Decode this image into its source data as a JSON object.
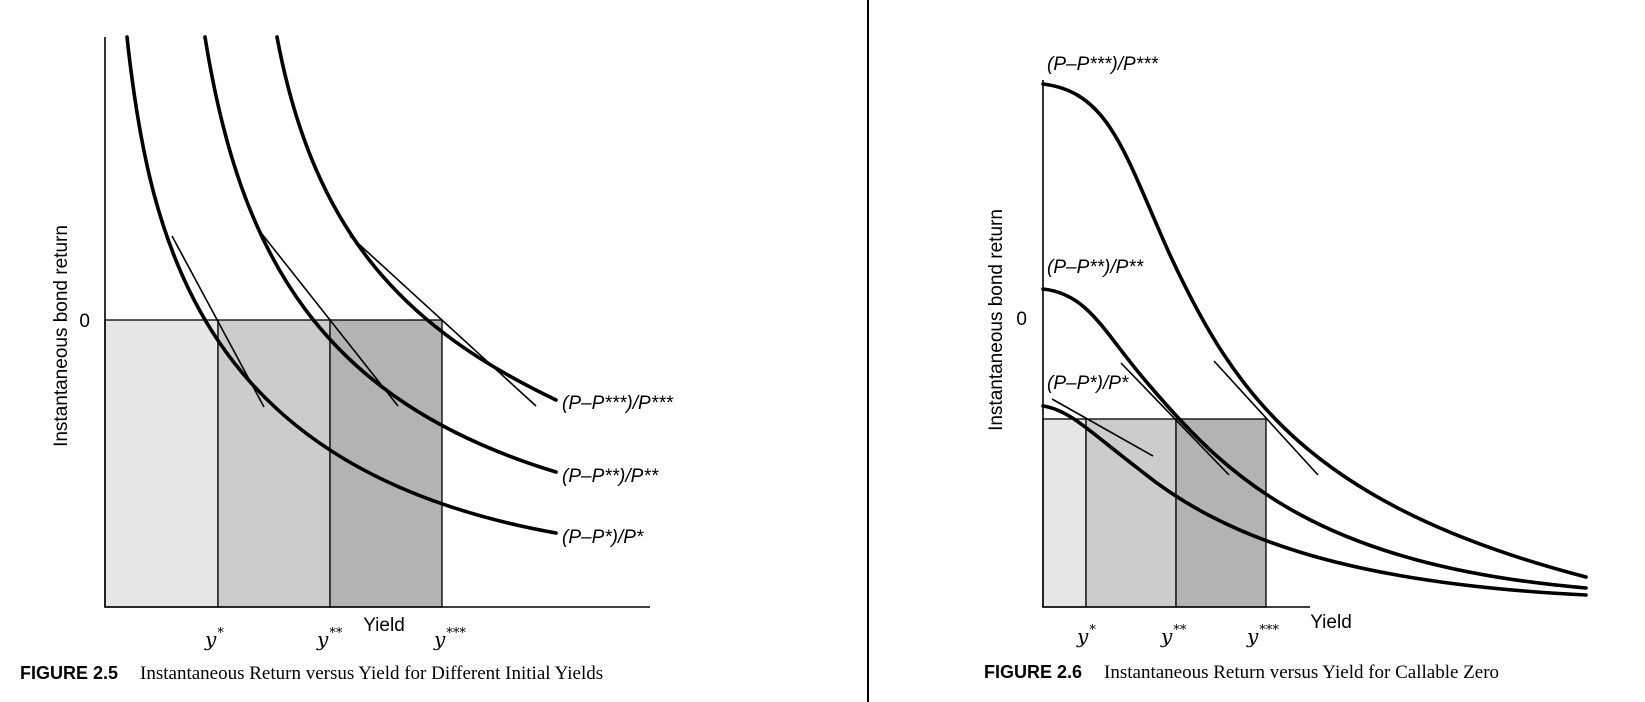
{
  "figures": [
    {
      "number": "FIGURE 2.5",
      "caption": "Instantaneous Return versus Yield for Different Initial Yields",
      "y_axis_label": "Instantaneous bond return",
      "x_axis_label": "Yield",
      "zero_label": "0",
      "yield_labels": [
        "y",
        "y",
        "y"
      ],
      "yield_stars": [
        "*",
        "**",
        "***"
      ],
      "curve_labels": [
        "(P–P***)/P***",
        "(P–P**)/P**",
        "(P–P*)/P*"
      ],
      "region_fills": [
        "#e6e6e6",
        "#cccccc",
        "#b3b3b3"
      ]
    },
    {
      "number": "FIGURE 2.6",
      "caption": "Instantaneous Return versus Yield for Callable Zero",
      "y_axis_label": "Instantaneous bond return",
      "x_axis_label": "Yield",
      "zero_label": "0",
      "yield_labels": [
        "y",
        "y",
        "y"
      ],
      "yield_stars": [
        "*",
        "**",
        "***"
      ],
      "curve_labels": [
        "(P–P***)/P***",
        "(P–P**)/P**",
        "(P–P*)/P*"
      ],
      "region_fills": [
        "#e6e6e6",
        "#cccccc",
        "#b3b3b3"
      ]
    }
  ]
}
